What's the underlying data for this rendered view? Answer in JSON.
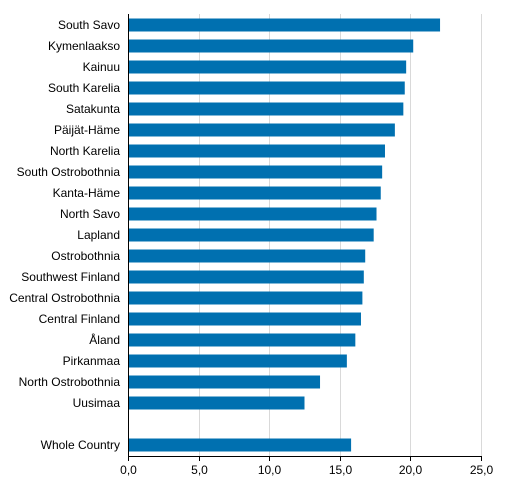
{
  "chart_data": {
    "type": "bar",
    "orientation": "horizontal",
    "categories": [
      "South Savo",
      "Kymenlaakso",
      "Kainuu",
      "South Karelia",
      "Satakunta",
      "Päijät-Häme",
      "North Karelia",
      "South Ostrobothnia",
      "Kanta-Häme",
      "North Savo",
      "Lapland",
      "Ostrobothnia",
      "Southwest Finland",
      "Central Ostrobothnia",
      "Central Finland",
      "Åland",
      "Pirkanmaa",
      "North Ostrobothnia",
      "Uusimaa",
      "",
      "Whole Country"
    ],
    "values": [
      22.1,
      20.2,
      19.7,
      19.6,
      19.5,
      18.9,
      18.2,
      18.0,
      17.9,
      17.6,
      17.4,
      16.8,
      16.7,
      16.6,
      16.5,
      16.1,
      15.5,
      13.6,
      12.5,
      null,
      15.8
    ],
    "x_ticks": [
      "0,0",
      "5,0",
      "10,0",
      "15,0",
      "20,0",
      "25,0"
    ],
    "xlim": [
      0,
      25
    ],
    "grid": true,
    "bar_color": "#0070b0",
    "grid_color": "#d9d9d9",
    "axis_color": "#000000"
  }
}
